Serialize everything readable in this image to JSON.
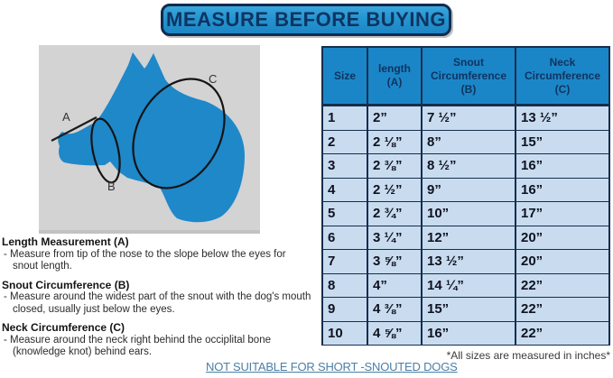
{
  "banner": {
    "title": "MEASURE BEFORE BUYING"
  },
  "diagram": {
    "labels": {
      "a": "A",
      "b": "B",
      "c": "C"
    }
  },
  "measurements": {
    "sections": [
      {
        "heading": "Length Measurement (A)",
        "line1": "- Measure from tip of the nose to the slope below the eyes for",
        "line2": "snout length."
      },
      {
        "heading": "Snout Circumference (B)",
        "line1": "- Measure around the widest part of the snout with the dog's mouth",
        "line2": "closed, usually just below the eyes."
      },
      {
        "heading": "Neck Circumference (C)",
        "line1": "- Measure around the neck right behind the occiplital bone",
        "line2": "(knowledge knot) behind ears."
      }
    ]
  },
  "size_table": {
    "headers": [
      "Size",
      "length\n(A)",
      "Snout\nCircumference\n(B)",
      "Neck\nCircumference\n(C)"
    ],
    "rows": [
      [
        "1",
        "2”",
        "7 ½”",
        "13 ½”"
      ],
      [
        "2",
        "2 ⅛”",
        "8”",
        "15”"
      ],
      [
        "3",
        "2 ⅜”",
        "8 ½”",
        "16”"
      ],
      [
        "4",
        "2 ½”",
        "9”",
        "16”"
      ],
      [
        "5",
        "2 ¾”",
        "10”",
        "17”"
      ],
      [
        "6",
        "3 ¼”",
        "12”",
        "20”"
      ],
      [
        "7",
        "3 ⅝”",
        "13 ½”",
        "20”"
      ],
      [
        "8",
        "4”",
        "14 ¼”",
        "22”"
      ],
      [
        "9",
        "4 ⅜”",
        "15”",
        "22”"
      ],
      [
        "10",
        "4 ⅝”",
        "16”",
        "22”"
      ]
    ],
    "footnote": "*All sizes are measured in inches*"
  },
  "warning": "NOT SUITABLE FOR SHORT -SNOUTED DOGS",
  "colors": {
    "accent_blue": "#1e88c9",
    "header_blue": "#1b86c7",
    "row_blue": "#c9dcef",
    "grid_navy": "#152e4e",
    "banner_text_navy": "#0f3460",
    "warning_blue": "#4a7fa6",
    "panel_gray": "#d3d3d3"
  }
}
